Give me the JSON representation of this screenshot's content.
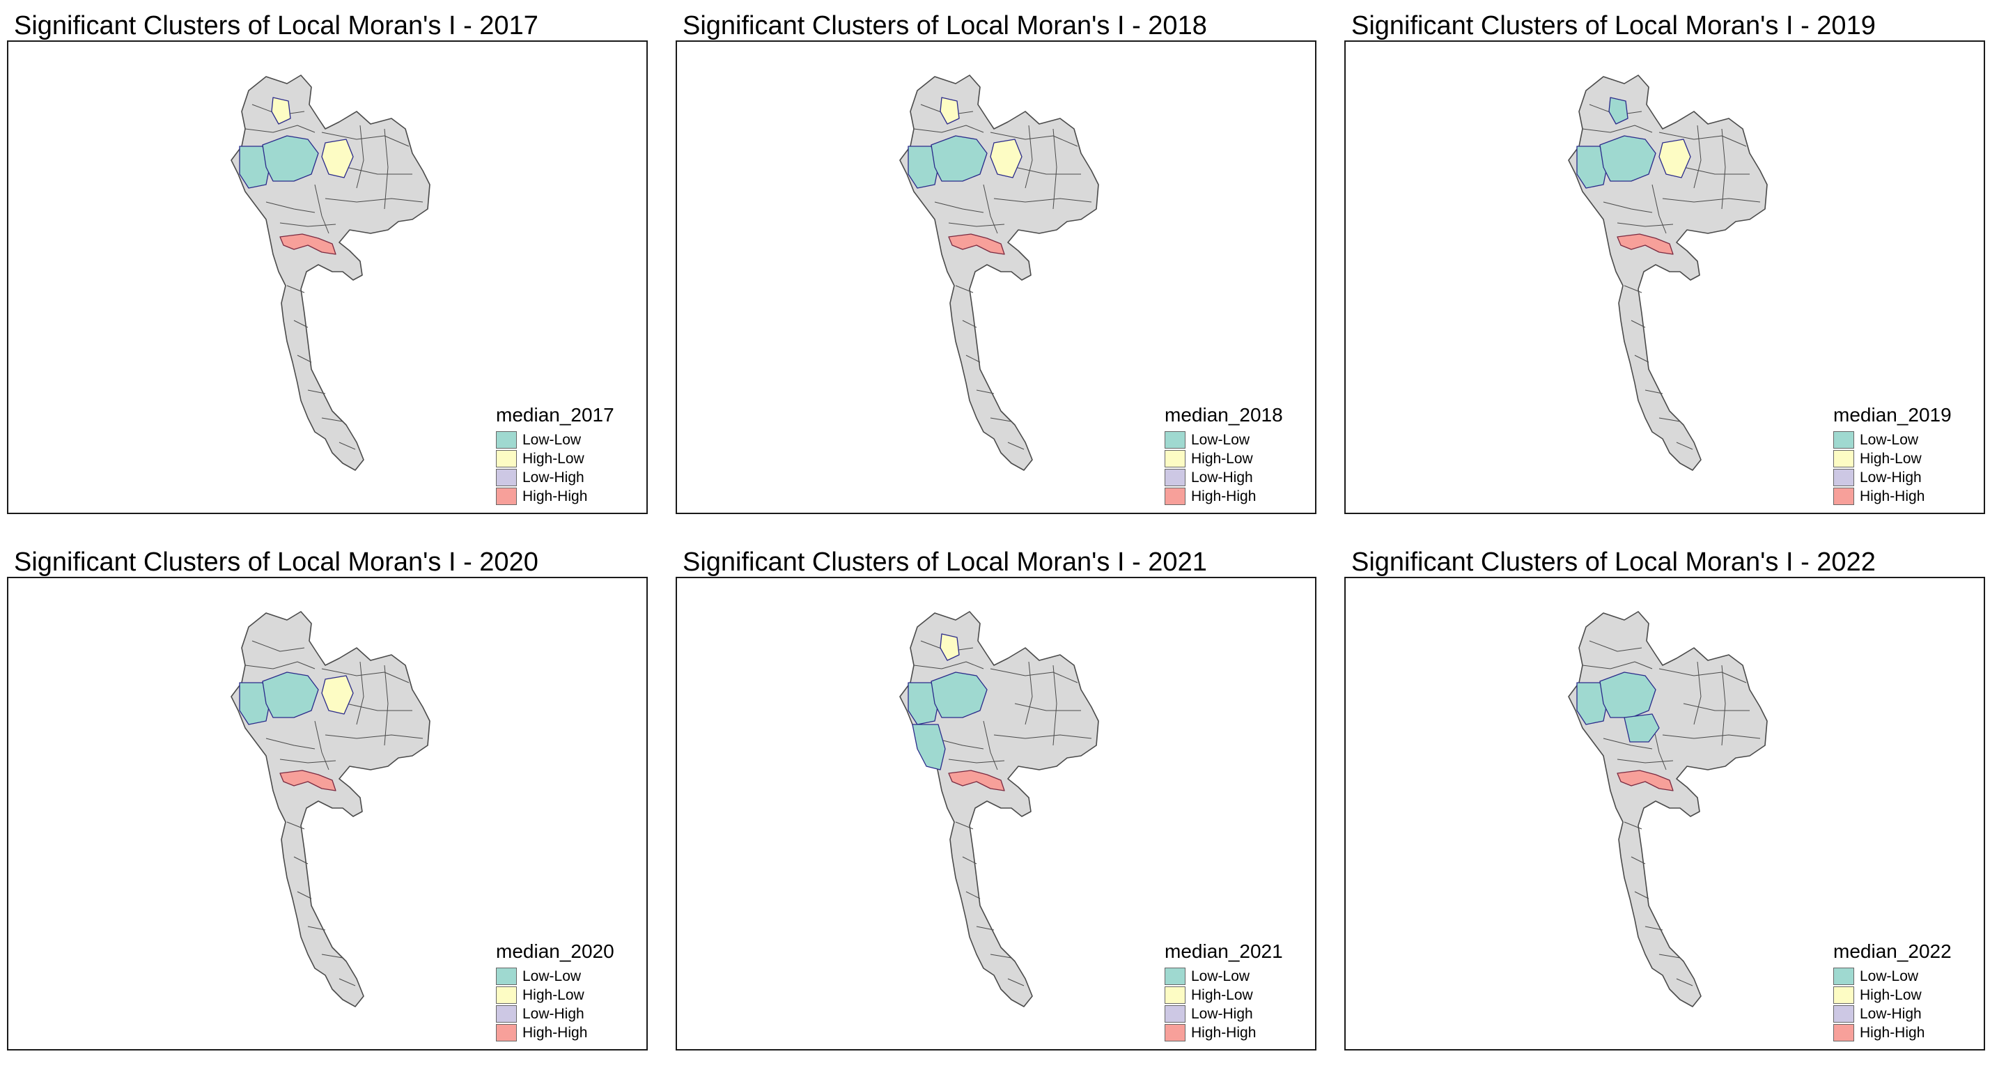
{
  "legend_labels": [
    "Low-Low",
    "High-Low",
    "Low-High",
    "High-High"
  ],
  "colors": {
    "low_low": "#9fd9d0",
    "high_low": "#fdfcc4",
    "low_high": "#cdc8e4",
    "high_high": "#f7a09a",
    "not_significant": "#d9d9d9",
    "province_border": "#4a4a4a",
    "cluster_border": "#2a2a8a"
  },
  "panels": [
    {
      "title": "Significant Clusters of Local Moran's I - 2017",
      "legend_title": "median_2017",
      "high_low_regions": [
        "north_small",
        "northeast"
      ],
      "low_low_regions": [
        "west_north",
        "central_north"
      ],
      "high_high_regions": [
        "bangkok"
      ]
    },
    {
      "title": "Significant Clusters of Local Moran's I - 2018",
      "legend_title": "median_2018",
      "high_low_regions": [
        "north_small",
        "northeast"
      ],
      "low_low_regions": [
        "west_north",
        "central_north"
      ],
      "high_high_regions": [
        "bangkok"
      ]
    },
    {
      "title": "Significant Clusters of Local Moran's I - 2019",
      "legend_title": "median_2019",
      "high_low_regions": [
        "northeast"
      ],
      "low_low_regions": [
        "west_north",
        "central_north",
        "north_small"
      ],
      "high_high_regions": [
        "bangkok"
      ]
    },
    {
      "title": "Significant Clusters of Local Moran's I - 2020",
      "legend_title": "median_2020",
      "high_low_regions": [
        "northeast"
      ],
      "low_low_regions": [
        "west_north",
        "central_north"
      ],
      "high_high_regions": [
        "bangkok"
      ]
    },
    {
      "title": "Significant Clusters of Local Moran's I - 2021",
      "legend_title": "median_2021",
      "high_low_regions": [
        "north_small"
      ],
      "low_low_regions": [
        "west_north",
        "central_north",
        "west_central"
      ],
      "high_high_regions": [
        "bangkok"
      ]
    },
    {
      "title": "Significant Clusters of Local Moran's I - 2022",
      "legend_title": "median_2022",
      "high_low_regions": [],
      "low_low_regions": [
        "west_north",
        "central_north",
        "central_east"
      ],
      "high_high_regions": [
        "bangkok"
      ]
    }
  ]
}
